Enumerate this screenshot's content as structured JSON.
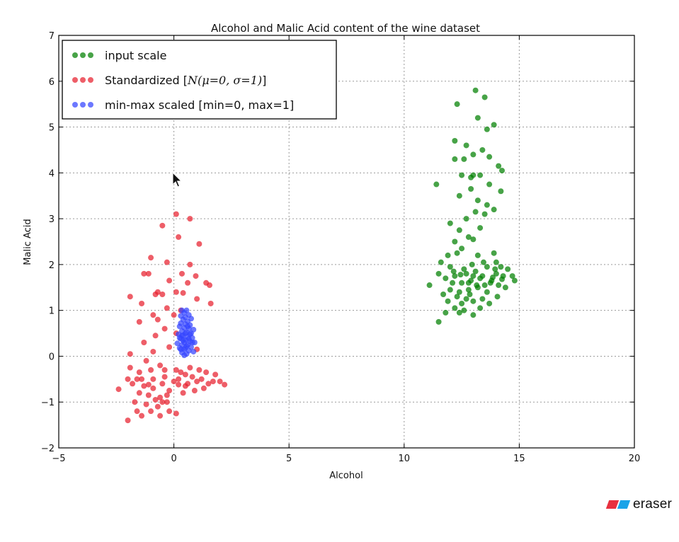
{
  "chart_data": {
    "type": "scatter",
    "title": "Alcohol and Malic Acid content of the wine dataset",
    "xlabel": "Alcohol",
    "ylabel": "Malic Acid",
    "xlim": [
      -5,
      20
    ],
    "ylim": [
      -2,
      7
    ],
    "xticks": [
      "−5",
      "0",
      "5",
      "10",
      "15",
      "20"
    ],
    "yticks": [
      "−2",
      "−1",
      "0",
      "1",
      "2",
      "3",
      "4",
      "5",
      "6",
      "7"
    ],
    "grid": true,
    "legend_position": "top-left",
    "series": [
      {
        "name": "input scale",
        "color": "#008000",
        "points": [
          [
            12.3,
            5.5
          ],
          [
            13.1,
            5.8
          ],
          [
            13.5,
            5.65
          ],
          [
            13.2,
            5.2
          ],
          [
            13.6,
            4.95
          ],
          [
            13.9,
            5.05
          ],
          [
            12.2,
            4.7
          ],
          [
            12.7,
            4.6
          ],
          [
            13.4,
            4.5
          ],
          [
            13.0,
            4.4
          ],
          [
            12.2,
            4.3
          ],
          [
            12.6,
            4.3
          ],
          [
            13.7,
            4.35
          ],
          [
            14.1,
            4.15
          ],
          [
            14.25,
            4.05
          ],
          [
            14.2,
            3.6
          ],
          [
            12.5,
            3.95
          ],
          [
            12.9,
            3.9
          ],
          [
            13.3,
            3.95
          ],
          [
            13.0,
            3.95
          ],
          [
            13.7,
            3.75
          ],
          [
            11.4,
            3.75
          ],
          [
            12.4,
            3.5
          ],
          [
            12.9,
            3.65
          ],
          [
            13.2,
            3.4
          ],
          [
            13.6,
            3.3
          ],
          [
            13.1,
            3.15
          ],
          [
            12.7,
            3.0
          ],
          [
            12.0,
            2.9
          ],
          [
            12.4,
            2.75
          ],
          [
            13.9,
            3.2
          ],
          [
            13.5,
            3.1
          ],
          [
            13.3,
            2.8
          ],
          [
            12.8,
            2.6
          ],
          [
            13.0,
            2.55
          ],
          [
            12.2,
            2.5
          ],
          [
            12.3,
            2.25
          ],
          [
            11.9,
            2.2
          ],
          [
            12.5,
            2.35
          ],
          [
            13.2,
            2.2
          ],
          [
            11.6,
            2.05
          ],
          [
            12.0,
            1.95
          ],
          [
            14.0,
            2.05
          ],
          [
            14.2,
            1.95
          ],
          [
            14.5,
            1.9
          ],
          [
            13.9,
            2.25
          ],
          [
            11.5,
            1.8
          ],
          [
            12.2,
            1.75
          ],
          [
            12.7,
            1.8
          ],
          [
            13.1,
            1.85
          ],
          [
            13.4,
            1.75
          ],
          [
            13.6,
            1.95
          ],
          [
            13.85,
            1.72
          ],
          [
            14.3,
            1.75
          ],
          [
            14.7,
            1.75
          ],
          [
            14.8,
            1.65
          ],
          [
            11.1,
            1.55
          ],
          [
            11.8,
            1.7
          ],
          [
            12.1,
            1.6
          ],
          [
            12.5,
            1.6
          ],
          [
            12.9,
            1.65
          ],
          [
            13.3,
            1.7
          ],
          [
            13.8,
            1.65
          ],
          [
            14.1,
            1.55
          ],
          [
            14.4,
            1.5
          ],
          [
            12.0,
            1.45
          ],
          [
            12.4,
            1.4
          ],
          [
            12.8,
            1.45
          ],
          [
            13.2,
            1.5
          ],
          [
            13.6,
            1.4
          ],
          [
            12.3,
            1.3
          ],
          [
            12.7,
            1.25
          ],
          [
            13.4,
            1.25
          ],
          [
            11.9,
            1.2
          ],
          [
            12.5,
            1.15
          ],
          [
            13.0,
            1.2
          ],
          [
            13.7,
            1.15
          ],
          [
            12.2,
            1.05
          ],
          [
            12.6,
            1.0
          ],
          [
            13.3,
            1.05
          ],
          [
            11.8,
            0.95
          ],
          [
            12.4,
            0.95
          ],
          [
            13.0,
            0.9
          ],
          [
            11.5,
            0.75
          ],
          [
            12.8,
            1.6
          ],
          [
            13.5,
            1.55
          ],
          [
            14.0,
            1.8
          ],
          [
            12.6,
            1.9
          ],
          [
            13.0,
            1.75
          ],
          [
            13.95,
            1.9
          ],
          [
            12.15,
            1.85
          ],
          [
            14.25,
            1.68
          ],
          [
            13.45,
            2.05
          ],
          [
            12.85,
            1.35
          ],
          [
            11.7,
            1.35
          ],
          [
            14.05,
            1.3
          ],
          [
            13.15,
            1.55
          ],
          [
            12.45,
            1.78
          ],
          [
            12.95,
            2.0
          ],
          [
            13.75,
            1.6
          ]
        ]
      },
      {
        "name": "Standardized [N(μ=0, σ=1)]",
        "color": "#e8202e",
        "points": [
          [
            0.1,
            3.1
          ],
          [
            0.7,
            3.0
          ],
          [
            -0.5,
            2.85
          ],
          [
            0.2,
            2.6
          ],
          [
            1.1,
            2.45
          ],
          [
            -1.0,
            2.15
          ],
          [
            -0.3,
            2.05
          ],
          [
            0.7,
            2.0
          ],
          [
            -1.3,
            1.8
          ],
          [
            -1.1,
            1.8
          ],
          [
            0.35,
            1.8
          ],
          [
            0.95,
            1.75
          ],
          [
            -0.2,
            1.65
          ],
          [
            0.6,
            1.6
          ],
          [
            1.4,
            1.6
          ],
          [
            1.55,
            1.55
          ],
          [
            -0.7,
            1.4
          ],
          [
            -0.8,
            1.35
          ],
          [
            -0.5,
            1.35
          ],
          [
            0.1,
            1.4
          ],
          [
            0.4,
            1.38
          ],
          [
            1.0,
            1.25
          ],
          [
            -1.9,
            1.3
          ],
          [
            -1.4,
            1.15
          ],
          [
            1.6,
            1.15
          ],
          [
            -0.3,
            1.05
          ],
          [
            0.3,
            1.0
          ],
          [
            -0.9,
            0.9
          ],
          [
            0.0,
            0.9
          ],
          [
            -0.7,
            0.8
          ],
          [
            -1.5,
            0.75
          ],
          [
            -0.4,
            0.6
          ],
          [
            -0.8,
            0.45
          ],
          [
            0.1,
            0.5
          ],
          [
            -1.3,
            0.3
          ],
          [
            -0.9,
            0.1
          ],
          [
            -1.9,
            0.05
          ],
          [
            -0.2,
            0.2
          ],
          [
            1.0,
            0.15
          ],
          [
            -1.2,
            -0.1
          ],
          [
            -0.6,
            -0.2
          ],
          [
            -1.9,
            -0.25
          ],
          [
            -1.5,
            -0.35
          ],
          [
            0.1,
            -0.3
          ],
          [
            0.5,
            -0.4
          ],
          [
            1.4,
            -0.35
          ],
          [
            1.8,
            -0.4
          ],
          [
            -2.0,
            -0.5
          ],
          [
            -0.4,
            -0.45
          ],
          [
            0.2,
            -0.5
          ],
          [
            0.8,
            -0.45
          ],
          [
            1.2,
            -0.5
          ],
          [
            -2.4,
            -0.72
          ],
          [
            -1.8,
            -0.6
          ],
          [
            -1.3,
            -0.65
          ],
          [
            -0.9,
            -0.7
          ],
          [
            -0.5,
            -0.6
          ],
          [
            0.0,
            -0.55
          ],
          [
            0.6,
            -0.6
          ],
          [
            1.0,
            -0.55
          ],
          [
            1.5,
            -0.6
          ],
          [
            2.0,
            -0.55
          ],
          [
            2.2,
            -0.62
          ],
          [
            -1.5,
            -0.8
          ],
          [
            -1.1,
            -0.85
          ],
          [
            -0.6,
            -0.9
          ],
          [
            -0.2,
            -0.75
          ],
          [
            0.4,
            -0.8
          ],
          [
            0.9,
            -0.75
          ],
          [
            -1.7,
            -1.0
          ],
          [
            -1.2,
            -1.05
          ],
          [
            -0.7,
            -1.1
          ],
          [
            -0.3,
            -1.0
          ],
          [
            -1.6,
            -1.2
          ],
          [
            -1.0,
            -1.2
          ],
          [
            -0.2,
            -1.2
          ],
          [
            0.1,
            -1.25
          ],
          [
            -0.6,
            -1.3
          ],
          [
            -1.4,
            -1.3
          ],
          [
            -2.0,
            -1.4
          ],
          [
            -0.9,
            -0.5
          ],
          [
            -1.4,
            -0.5
          ],
          [
            0.3,
            -0.35
          ],
          [
            1.3,
            -0.7
          ],
          [
            -0.3,
            -0.85
          ],
          [
            0.7,
            -0.25
          ],
          [
            -1.0,
            -0.3
          ],
          [
            1.1,
            -0.3
          ],
          [
            -0.5,
            -1.0
          ],
          [
            -1.1,
            -0.62
          ],
          [
            0.2,
            -0.62
          ],
          [
            -0.4,
            -0.3
          ],
          [
            0.5,
            -0.65
          ],
          [
            1.7,
            -0.55
          ],
          [
            -1.6,
            -0.5
          ],
          [
            -0.8,
            -0.95
          ]
        ]
      },
      {
        "name": "min-max scaled [min=0, max=1]",
        "color": "#3344ff",
        "points": [
          [
            0.35,
            1.0
          ],
          [
            0.55,
            1.0
          ],
          [
            0.45,
            0.95
          ],
          [
            0.65,
            0.9
          ],
          [
            0.3,
            0.88
          ],
          [
            0.5,
            0.85
          ],
          [
            0.75,
            0.82
          ],
          [
            0.4,
            0.8
          ],
          [
            0.6,
            0.76
          ],
          [
            0.3,
            0.72
          ],
          [
            0.5,
            0.7
          ],
          [
            0.7,
            0.68
          ],
          [
            0.25,
            0.65
          ],
          [
            0.45,
            0.62
          ],
          [
            0.65,
            0.6
          ],
          [
            0.85,
            0.58
          ],
          [
            0.35,
            0.55
          ],
          [
            0.55,
            0.52
          ],
          [
            0.75,
            0.5
          ],
          [
            0.2,
            0.48
          ],
          [
            0.4,
            0.45
          ],
          [
            0.6,
            0.42
          ],
          [
            0.8,
            0.4
          ],
          [
            0.3,
            0.38
          ],
          [
            0.5,
            0.35
          ],
          [
            0.7,
            0.32
          ],
          [
            0.9,
            0.3
          ],
          [
            0.15,
            0.28
          ],
          [
            0.35,
            0.25
          ],
          [
            0.55,
            0.22
          ],
          [
            0.75,
            0.2
          ],
          [
            0.25,
            0.18
          ],
          [
            0.45,
            0.15
          ],
          [
            0.65,
            0.12
          ],
          [
            0.85,
            0.1
          ],
          [
            0.35,
            0.08
          ],
          [
            0.55,
            0.05
          ],
          [
            0.45,
            0.02
          ],
          [
            0.6,
            0.25
          ],
          [
            0.4,
            0.35
          ],
          [
            0.5,
            0.5
          ],
          [
            0.6,
            0.65
          ],
          [
            0.35,
            0.45
          ],
          [
            0.7,
            0.48
          ],
          [
            0.45,
            0.3
          ],
          [
            0.25,
            0.4
          ],
          [
            0.8,
            0.3
          ],
          [
            0.5,
            0.18
          ],
          [
            0.3,
            0.15
          ],
          [
            0.65,
            0.38
          ]
        ]
      }
    ],
    "legend": {
      "items": [
        {
          "prefix": "input scale",
          "math": "",
          "suffix": ""
        },
        {
          "prefix": "Standardized [",
          "math": "N(μ=0,  σ=1)",
          "suffix": "]"
        },
        {
          "prefix": "min-max scaled [min=0, max=1]",
          "math": "",
          "suffix": ""
        }
      ]
    }
  },
  "watermark": {
    "text": "eraser",
    "colors": [
      "#e8313f",
      "#1aa3e8"
    ]
  },
  "cursor": {
    "icon": "mouse-pointer-icon"
  }
}
